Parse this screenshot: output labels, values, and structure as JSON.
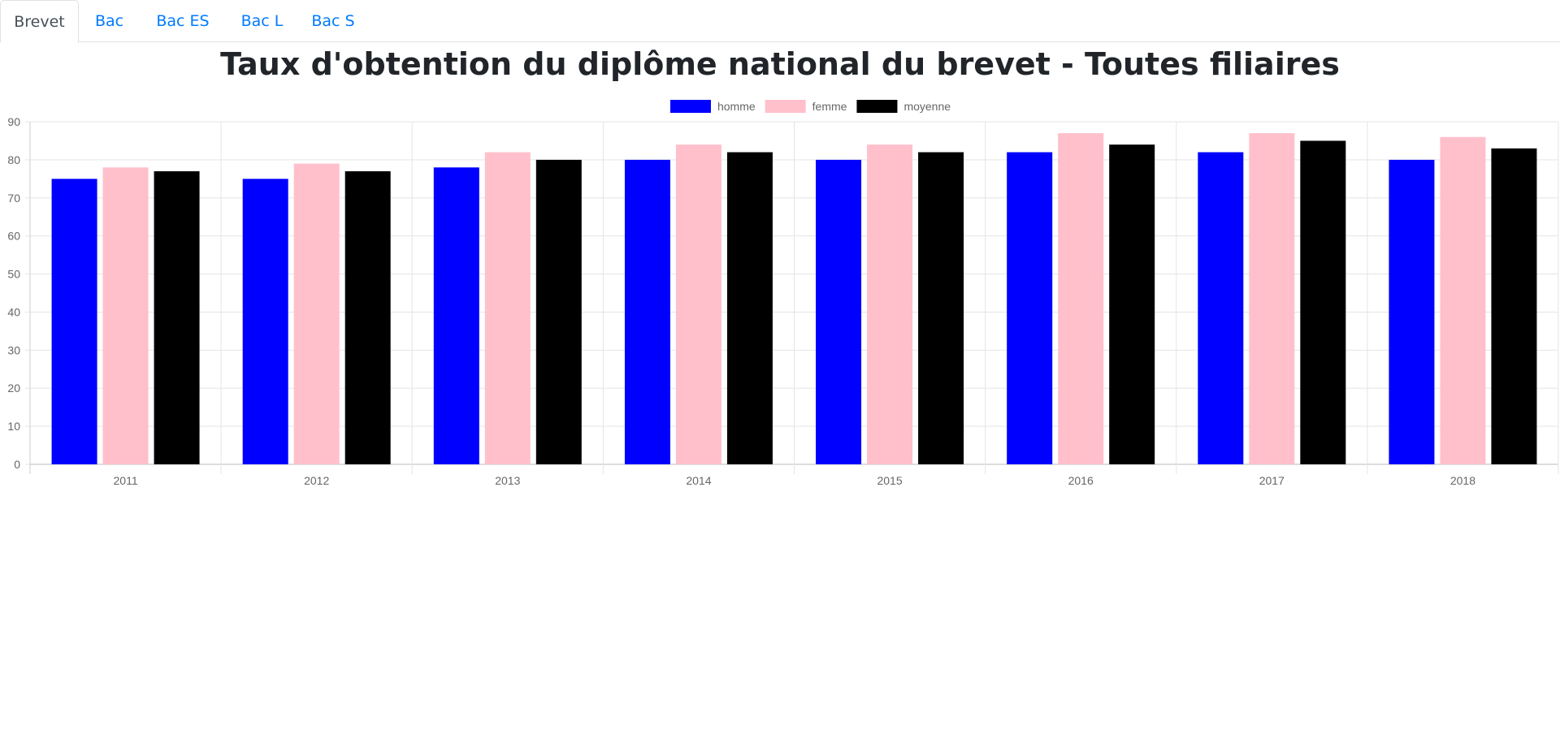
{
  "tabs": [
    {
      "label": "Brevet",
      "active": true
    },
    {
      "label": "Bac",
      "active": false
    },
    {
      "label": "Bac ES",
      "active": false
    },
    {
      "label": "Bac L",
      "active": false
    },
    {
      "label": "Bac S",
      "active": false
    }
  ],
  "page": {
    "title": "Taux d'obtention du diplôme national du brevet - Toutes filiaires"
  },
  "colors": {
    "tab_link": "#007bff",
    "tab_active": "#495057",
    "grid": "#e5e5e5",
    "axis_text": "#666666"
  },
  "chart_data": {
    "type": "bar",
    "title": "Taux d'obtention du diplôme national du brevet - Toutes filiaires",
    "categories": [
      "2011",
      "2012",
      "2013",
      "2014",
      "2015",
      "2016",
      "2017",
      "2018"
    ],
    "series": [
      {
        "name": "homme",
        "color": "#0000ff",
        "values": [
          75,
          75,
          78,
          80,
          80,
          82,
          82,
          80
        ]
      },
      {
        "name": "femme",
        "color": "#ffc0cb",
        "values": [
          78,
          79,
          82,
          84,
          84,
          87,
          87,
          86
        ]
      },
      {
        "name": "moyenne",
        "color": "#000000",
        "values": [
          77,
          77,
          80,
          82,
          82,
          84,
          85,
          83
        ]
      }
    ],
    "ylim": [
      0,
      90
    ],
    "yticks": [
      0,
      10,
      20,
      30,
      40,
      50,
      60,
      70,
      80,
      90
    ],
    "grid": true,
    "legend": "top-center"
  }
}
